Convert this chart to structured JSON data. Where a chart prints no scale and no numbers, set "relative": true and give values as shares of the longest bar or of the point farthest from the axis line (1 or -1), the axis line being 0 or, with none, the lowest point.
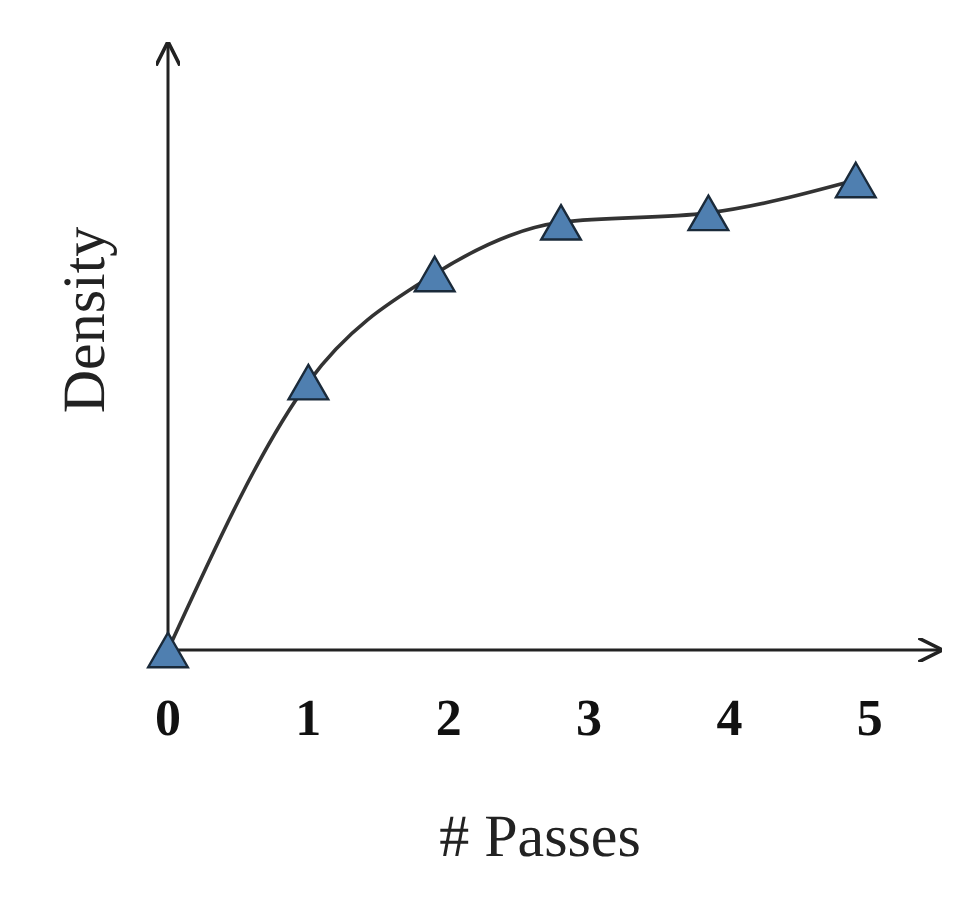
{
  "chart_data": {
    "type": "line",
    "xlabel": "# Passes",
    "ylabel": "Density",
    "x": [
      0,
      1,
      1.9,
      2.8,
      3.85,
      4.9
    ],
    "series": [
      {
        "color": "#4f7fb0",
        "values": [
          0,
          0.57,
          0.8,
          0.91,
          0.93,
          1
        ]
      }
    ],
    "relative": true,
    "xlim": [
      0,
      5.5
    ],
    "xticks": [
      0,
      1,
      2,
      3,
      4,
      5
    ],
    "tick_labels": "x",
    "marker": "triangle",
    "line_style": "solid"
  }
}
